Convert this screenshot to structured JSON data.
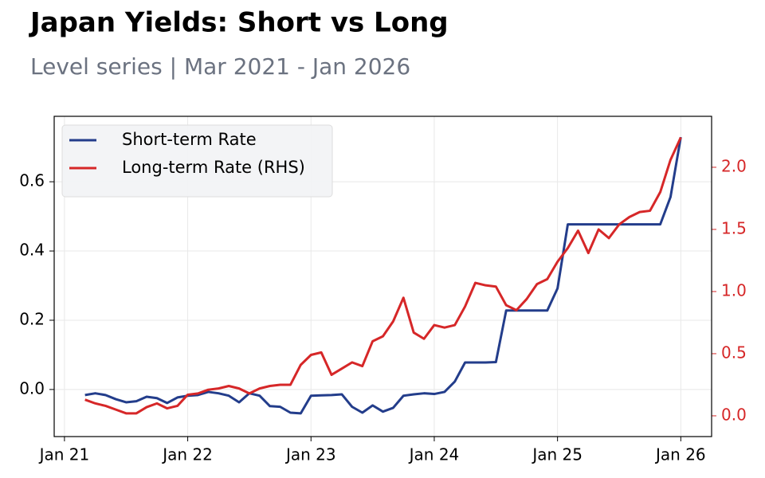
{
  "chart_data": {
    "type": "line",
    "title": "Japan Yields: Short vs Long",
    "subtitle": "Level series | Mar 2021 - Jan 2026",
    "x": [
      "2021-03",
      "2021-04",
      "2021-05",
      "2021-06",
      "2021-07",
      "2021-08",
      "2021-09",
      "2021-10",
      "2021-11",
      "2021-12",
      "2022-01",
      "2022-02",
      "2022-03",
      "2022-04",
      "2022-05",
      "2022-06",
      "2022-07",
      "2022-08",
      "2022-09",
      "2022-10",
      "2022-11",
      "2022-12",
      "2023-01",
      "2023-02",
      "2023-03",
      "2023-04",
      "2023-05",
      "2023-06",
      "2023-07",
      "2023-08",
      "2023-09",
      "2023-10",
      "2023-11",
      "2023-12",
      "2024-01",
      "2024-02",
      "2024-03",
      "2024-04",
      "2024-05",
      "2024-06",
      "2024-07",
      "2024-08",
      "2024-09",
      "2024-10",
      "2024-11",
      "2024-12",
      "2025-01",
      "2025-02",
      "2025-03",
      "2025-04",
      "2025-05",
      "2025-06",
      "2025-07",
      "2025-08",
      "2025-09",
      "2025-10",
      "2025-11",
      "2025-12",
      "2026-01"
    ],
    "series": [
      {
        "name": "Short-term Rate",
        "color": "#233d8b",
        "values": [
          -0.016,
          -0.011,
          -0.016,
          -0.028,
          -0.037,
          -0.034,
          -0.021,
          -0.025,
          -0.039,
          -0.023,
          -0.018,
          -0.016,
          -0.007,
          -0.011,
          -0.018,
          -0.037,
          -0.011,
          -0.018,
          -0.048,
          -0.05,
          -0.067,
          -0.069,
          -0.018,
          -0.017,
          -0.016,
          -0.014,
          -0.05,
          -0.067,
          -0.046,
          -0.064,
          -0.053,
          -0.018,
          -0.014,
          -0.011,
          -0.013,
          -0.007,
          0.023,
          0.078,
          0.078,
          0.078,
          0.079,
          0.228,
          0.228,
          0.228,
          0.228,
          0.228,
          0.292,
          0.477,
          0.477,
          0.477,
          0.477,
          0.477,
          0.477,
          0.477,
          0.477,
          0.477,
          0.477,
          0.556,
          0.729
        ]
      },
      {
        "name": "Long-term Rate (RHS)",
        "color": "#d62728",
        "axis": "y2",
        "values": [
          0.13,
          0.1,
          0.08,
          0.05,
          0.02,
          0.02,
          0.07,
          0.1,
          0.06,
          0.08,
          0.17,
          0.18,
          0.21,
          0.22,
          0.24,
          0.22,
          0.18,
          0.22,
          0.24,
          0.25,
          0.25,
          0.41,
          0.49,
          0.51,
          0.33,
          0.38,
          0.43,
          0.4,
          0.6,
          0.64,
          0.76,
          0.95,
          0.67,
          0.62,
          0.73,
          0.71,
          0.73,
          0.88,
          1.07,
          1.05,
          1.04,
          0.89,
          0.85,
          0.94,
          1.06,
          1.1,
          1.24,
          1.35,
          1.49,
          1.31,
          1.5,
          1.43,
          1.54,
          1.6,
          1.64,
          1.65,
          1.8,
          2.06,
          2.24
        ]
      }
    ],
    "xlim": [
      "2020-12",
      "2026-04"
    ],
    "xticks": [
      {
        "value": "2021-01",
        "label": "Jan 21"
      },
      {
        "value": "2022-01",
        "label": "Jan 22"
      },
      {
        "value": "2023-01",
        "label": "Jan 23"
      },
      {
        "value": "2024-01",
        "label": "Jan 24"
      },
      {
        "value": "2025-01",
        "label": "Jan 25"
      },
      {
        "value": "2026-01",
        "label": "Jan 26"
      }
    ],
    "ylim": [
      -0.136,
      0.789
    ],
    "yticks": [
      {
        "value": 0,
        "label": "0.0"
      },
      0.2,
      0.4,
      0.6
    ],
    "y2lim": [
      -0.167,
      2.41
    ],
    "y2ticks": [
      {
        "value": 0,
        "label": "0.0"
      },
      0.5,
      {
        "value": 1,
        "label": "1.0"
      },
      1.5,
      {
        "value": 2,
        "label": "2.0"
      }
    ],
    "y2_color": "#d62728",
    "grid": true,
    "legend": "upper-left"
  }
}
